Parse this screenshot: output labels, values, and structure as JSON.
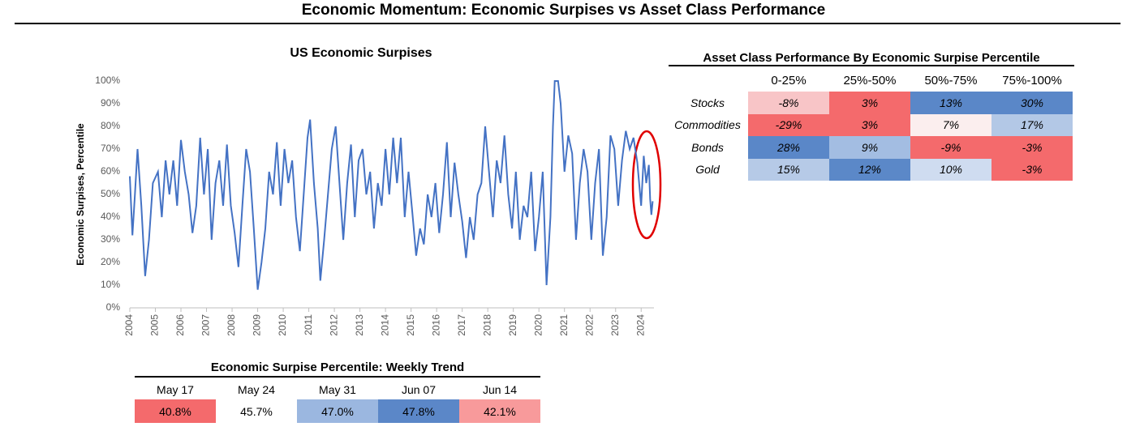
{
  "title": "Economic Momentum: Economic Surpises vs Asset Class Performance",
  "chart_data": {
    "type": "line",
    "title": "US Economic Surpises",
    "y_label": "Economic Surpises, Percentile",
    "color": "#4472c4",
    "x": [
      2004.0,
      2004.1,
      2004.2,
      2004.3,
      2004.45,
      2004.6,
      2004.75,
      2004.9,
      2005.1,
      2005.25,
      2005.4,
      2005.55,
      2005.7,
      2005.85,
      2006.0,
      2006.15,
      2006.3,
      2006.45,
      2006.6,
      2006.75,
      2006.9,
      2007.05,
      2007.2,
      2007.35,
      2007.5,
      2007.65,
      2007.8,
      2007.95,
      2008.1,
      2008.25,
      2008.4,
      2008.55,
      2008.7,
      2008.85,
      2009.0,
      2009.15,
      2009.3,
      2009.45,
      2009.6,
      2009.75,
      2009.9,
      2010.05,
      2010.2,
      2010.35,
      2010.5,
      2010.65,
      2010.8,
      2010.95,
      2011.05,
      2011.2,
      2011.35,
      2011.45,
      2011.6,
      2011.75,
      2011.9,
      2012.05,
      2012.2,
      2012.35,
      2012.5,
      2012.65,
      2012.8,
      2012.95,
      2013.1,
      2013.25,
      2013.4,
      2013.55,
      2013.7,
      2013.85,
      2014.0,
      2014.15,
      2014.3,
      2014.45,
      2014.6,
      2014.75,
      2014.9,
      2015.05,
      2015.2,
      2015.35,
      2015.5,
      2015.65,
      2015.8,
      2015.95,
      2016.1,
      2016.25,
      2016.4,
      2016.55,
      2016.7,
      2016.85,
      2017.0,
      2017.15,
      2017.3,
      2017.45,
      2017.6,
      2017.75,
      2017.9,
      2018.05,
      2018.2,
      2018.35,
      2018.5,
      2018.65,
      2018.8,
      2018.95,
      2019.1,
      2019.25,
      2019.4,
      2019.55,
      2019.7,
      2019.85,
      2020.0,
      2020.15,
      2020.3,
      2020.45,
      2020.55,
      2020.62,
      2020.75,
      2020.85,
      2021.0,
      2021.15,
      2021.3,
      2021.45,
      2021.6,
      2021.75,
      2021.9,
      2022.05,
      2022.2,
      2022.35,
      2022.5,
      2022.65,
      2022.8,
      2022.95,
      2023.1,
      2023.25,
      2023.4,
      2023.55,
      2023.7,
      2023.85,
      2024.0,
      2024.1,
      2024.2,
      2024.3,
      2024.35,
      2024.4,
      2024.45
    ],
    "values": [
      58,
      32,
      50,
      70,
      45,
      14,
      30,
      55,
      60,
      40,
      65,
      50,
      65,
      45,
      74,
      60,
      50,
      33,
      45,
      75,
      50,
      70,
      30,
      55,
      65,
      45,
      72,
      45,
      33,
      18,
      45,
      70,
      60,
      35,
      8,
      20,
      35,
      60,
      50,
      73,
      45,
      70,
      55,
      65,
      40,
      25,
      50,
      75,
      83,
      55,
      35,
      12,
      30,
      50,
      70,
      80,
      55,
      30,
      55,
      72,
      40,
      65,
      70,
      50,
      60,
      35,
      55,
      45,
      70,
      50,
      75,
      55,
      75,
      40,
      60,
      42,
      23,
      35,
      28,
      50,
      40,
      55,
      33,
      50,
      73,
      40,
      64,
      50,
      38,
      22,
      40,
      30,
      50,
      55,
      80,
      60,
      40,
      65,
      55,
      76,
      50,
      35,
      60,
      30,
      45,
      40,
      60,
      25,
      40,
      60,
      10,
      40,
      80,
      100,
      100,
      90,
      60,
      76,
      68,
      30,
      55,
      70,
      60,
      30,
      55,
      70,
      23,
      40,
      76,
      70,
      45,
      65,
      78,
      70,
      75,
      64,
      45,
      67,
      55,
      63,
      48,
      41,
      47
    ],
    "xlim": [
      2004,
      2024.5
    ],
    "xticks": [
      2004,
      2005,
      2006,
      2007,
      2008,
      2009,
      2010,
      2011,
      2012,
      2013,
      2014,
      2015,
      2016,
      2017,
      2018,
      2019,
      2020,
      2021,
      2022,
      2023,
      2024
    ],
    "ylim": [
      0,
      100
    ],
    "yticks": [
      {
        "value": 0,
        "label": "0%"
      },
      {
        "value": 10,
        "label": "10%"
      },
      {
        "value": 20,
        "label": "20%"
      },
      {
        "value": 30,
        "label": "30%"
      },
      {
        "value": 40,
        "label": "40%"
      },
      {
        "value": 50,
        "label": "50%"
      },
      {
        "value": 60,
        "label": "60%"
      },
      {
        "value": 70,
        "label": "70%"
      },
      {
        "value": 80,
        "label": "80%"
      },
      {
        "value": 90,
        "label": "90%"
      },
      {
        "value": 100,
        "label": "100%"
      }
    ]
  },
  "performance_table": {
    "title": "Asset Class Performance By Economic Surpise Percentile",
    "columns": [
      "0-25%",
      "25%-50%",
      "50%-75%",
      "75%-100%"
    ],
    "rows": [
      {
        "label": "Stocks",
        "cells": [
          "-8%",
          "3%",
          "13%",
          "30%"
        ],
        "colors": [
          "#f8c5c7",
          "#f46a6c",
          "#5a87c8",
          "#5a87c8"
        ]
      },
      {
        "label": "Commodities",
        "cells": [
          "-29%",
          "3%",
          "7%",
          "17%"
        ],
        "colors": [
          "#f46a6c",
          "#f46a6c",
          "#fbeeee",
          "#b3c8e6"
        ]
      },
      {
        "label": "Bonds",
        "cells": [
          "28%",
          "9%",
          "-9%",
          "-3%"
        ],
        "colors": [
          "#5a87c8",
          "#a3bde2",
          "#f46a6c",
          "#f46a6c"
        ]
      },
      {
        "label": "Gold",
        "cells": [
          "15%",
          "12%",
          "10%",
          "-3%"
        ],
        "colors": [
          "#b6cae7",
          "#5b88c8",
          "#cfdcf0",
          "#f46a6c"
        ]
      }
    ]
  },
  "weekly_table": {
    "title": "Economic Surpise Percentile: Weekly Trend",
    "columns": [
      "May 17",
      "May 24",
      "May 31",
      "Jun 07",
      "Jun 14"
    ],
    "cells": [
      "40.8%",
      "45.7%",
      "47.0%",
      "47.8%",
      "42.1%"
    ],
    "colors": [
      "#f46a6c",
      "#ffffff",
      "#9bb7e0",
      "#5b87c8",
      "#f89a9b"
    ]
  }
}
